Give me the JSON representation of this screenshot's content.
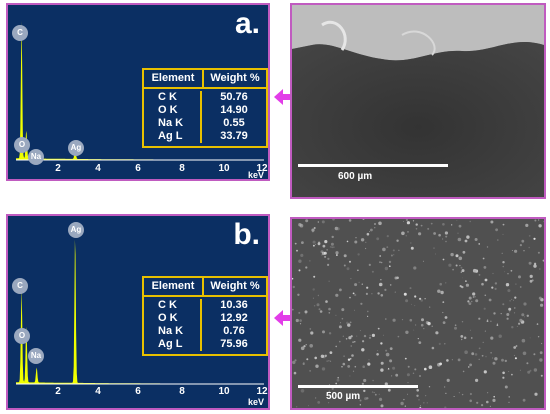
{
  "panels": [
    {
      "letter": "a.",
      "table_header": {
        "element": "Element",
        "weight": "Weight %"
      },
      "rows": [
        {
          "element": "C K",
          "weight": "50.76"
        },
        {
          "element": "O K",
          "weight": "14.90"
        },
        {
          "element": "Na K",
          "weight": "0.55"
        },
        {
          "element": "Ag L",
          "weight": "33.79"
        }
      ],
      "peak_labels": [
        "C",
        "O",
        "Na",
        "Ag"
      ],
      "scale_label": "600 µm"
    },
    {
      "letter": "b.",
      "table_header": {
        "element": "Element",
        "weight": "Weight %"
      },
      "rows": [
        {
          "element": "C K",
          "weight": "10.36"
        },
        {
          "element": "O K",
          "weight": "12.92"
        },
        {
          "element": "Na K",
          "weight": "0.76"
        },
        {
          "element": "Ag L",
          "weight": "75.96"
        }
      ],
      "peak_labels": [
        "Ag",
        "C",
        "O",
        "Na"
      ],
      "scale_label": "500 µm"
    }
  ],
  "axis": {
    "ticks": [
      "2",
      "4",
      "6",
      "8",
      "10",
      "12"
    ],
    "unit": "keV"
  },
  "colors": {
    "spectrum_bg": "#0b2f63",
    "spectrum_line": "#f0ff00",
    "table_border": "#e8c000",
    "frame": "#c05bc0",
    "arrow": "#e23de8"
  },
  "chart_data": [
    {
      "type": "line",
      "x_unit": "keV",
      "xlim": [
        0,
        12.5
      ],
      "peaks": [
        {
          "label": "C",
          "x": 0.28,
          "rel_height": 0.95
        },
        {
          "label": "O",
          "x": 0.52,
          "rel_height": 0.2
        },
        {
          "label": "Na",
          "x": 1.04,
          "rel_height": 0.05
        },
        {
          "label": "Ag",
          "x": 2.98,
          "rel_height": 0.08
        }
      ]
    },
    {
      "type": "line",
      "x_unit": "keV",
      "xlim": [
        0,
        12.5
      ],
      "peaks": [
        {
          "label": "Ag",
          "x": 2.98,
          "rel_height": 0.98
        },
        {
          "label": "C",
          "x": 0.28,
          "rel_height": 0.62
        },
        {
          "label": "O",
          "x": 0.52,
          "rel_height": 0.38
        },
        {
          "label": "Na",
          "x": 1.04,
          "rel_height": 0.1
        }
      ]
    }
  ]
}
